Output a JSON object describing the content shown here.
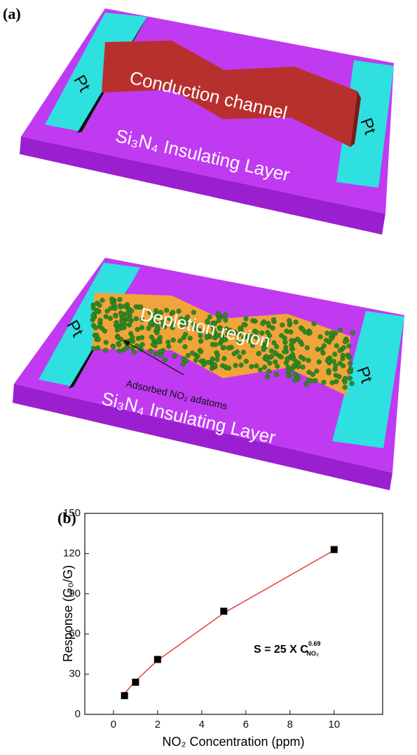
{
  "figure": {
    "panel_a_label": "(a)",
    "top": {
      "pt_left": "Pt",
      "pt_right": "Pt",
      "channel": "Conduction channel",
      "layer": "Si₃N₄ Insulating Layer"
    },
    "bottom": {
      "pt_left": "Pt",
      "pt_right": "Pt",
      "region": "Depletion region",
      "adsorbed": "Adsorbed NO₂ adatoms",
      "layer": "Si₃N₄ Insulating Layer"
    },
    "panel_b_label": "(b)"
  },
  "chart_data": {
    "type": "scatter",
    "x_label": "NO₂ Concentration (ppm)",
    "y_label": "Response (G₀/G)",
    "annotation": {
      "text": "S = 25 X C",
      "superscript": "0.69",
      "subscript": "NO₂"
    },
    "x": [
      0.5,
      1,
      2,
      5,
      10
    ],
    "series": [
      {
        "values": [
          14,
          24,
          41,
          77,
          123
        ],
        "color": "#000000",
        "marker": "square"
      },
      {
        "values": [
          15.5,
          25,
          40.3,
          75.6,
          122.5
        ],
        "color": "#e02424",
        "marker": "line"
      }
    ],
    "xlim": [
      -1.3,
      12.2
    ],
    "ylim": [
      0,
      150
    ],
    "xticks": [
      0,
      2,
      4,
      6,
      8,
      10
    ],
    "yticks": [
      0,
      30,
      60,
      90,
      120,
      150
    ]
  }
}
